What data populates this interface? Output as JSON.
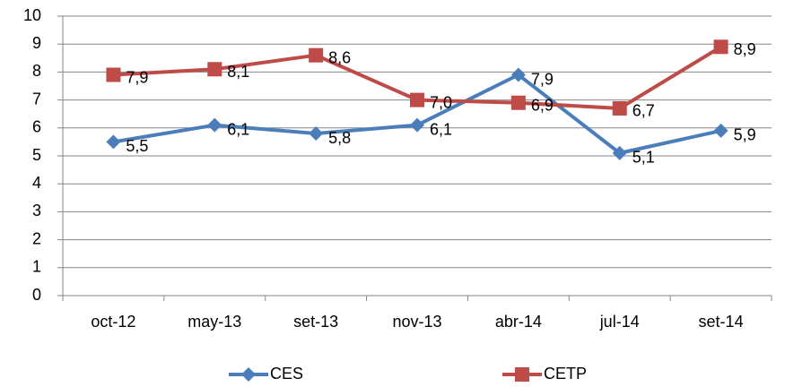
{
  "chart_data": {
    "type": "line",
    "categories": [
      "oct-12",
      "may-13",
      "set-13",
      "nov-13",
      "abr-14",
      "jul-14",
      "set-14"
    ],
    "series": [
      {
        "name": "CES",
        "color": "#4a7ebb",
        "marker": "diamond",
        "values": [
          5.5,
          6.1,
          5.8,
          6.1,
          7.9,
          5.1,
          5.9
        ],
        "value_labels": [
          "5,5",
          "6,1",
          "5,8",
          "6,1",
          "7,9",
          "5,1",
          "5,9"
        ]
      },
      {
        "name": "CETP",
        "color": "#be4b48",
        "marker": "square",
        "values": [
          7.9,
          8.1,
          8.6,
          7.0,
          6.9,
          6.7,
          8.9
        ],
        "value_labels": [
          "7,9",
          "8,1",
          "8,6",
          "7,0",
          "6,9",
          "6,7",
          "8,9"
        ]
      }
    ],
    "ylim": [
      0,
      10
    ],
    "yticks": [
      0,
      1,
      2,
      3,
      4,
      5,
      6,
      7,
      8,
      9,
      10
    ],
    "grid": true,
    "legend": "bottom"
  }
}
